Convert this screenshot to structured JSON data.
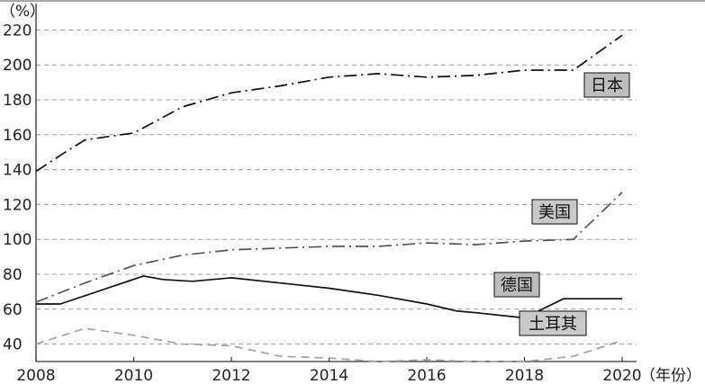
{
  "chart_data": {
    "type": "line",
    "y_unit_label": "（%）",
    "x_unit_label": "（年份）",
    "ylim": [
      30,
      230
    ],
    "xlim": [
      2008,
      2020
    ],
    "y_ticks": [
      40,
      60,
      80,
      100,
      120,
      140,
      160,
      180,
      200,
      220
    ],
    "x_ticks": [
      2008,
      2010,
      2012,
      2014,
      2016,
      2018,
      2020
    ],
    "grid": true,
    "series": [
      {
        "name": "日本",
        "color": "#111111",
        "style": "dashdot",
        "label_bg": "#bdbdbd",
        "x": [
          2008,
          2008.6,
          2009,
          2009.5,
          2010,
          2011,
          2012,
          2013,
          2014,
          2015,
          2016,
          2017,
          2018,
          2018.5,
          2019,
          2020
        ],
        "values": [
          139,
          150,
          157,
          159,
          161,
          176,
          184,
          188,
          193,
          195,
          193,
          194,
          197,
          197,
          197,
          217
        ]
      },
      {
        "name": "美国",
        "color": "#555555",
        "style": "dashdot",
        "label_bg": "#c9c9c9",
        "x": [
          2008,
          2009,
          2010,
          2011,
          2012,
          2013,
          2014,
          2015,
          2016,
          2017,
          2018,
          2019,
          2020
        ],
        "values": [
          64,
          75,
          85,
          91,
          94,
          95,
          96,
          96,
          98,
          97,
          99,
          100,
          127
        ]
      },
      {
        "name": "德国",
        "color": "#111111",
        "style": "solid",
        "label_bg": "#bdbdbd",
        "x": [
          2008,
          2008.5,
          2010.2,
          2010.6,
          2011.2,
          2012,
          2013,
          2014,
          2015,
          2016,
          2016.6,
          2017,
          2018,
          2018.8,
          2020
        ],
        "values": [
          63,
          63,
          79,
          77,
          76,
          78,
          75,
          72,
          68,
          63,
          59,
          58,
          55,
          66,
          66
        ]
      },
      {
        "name": "土耳其",
        "color": "#a3a3a3",
        "style": "dashed",
        "label_bg": "#c9c9c9",
        "x": [
          2008,
          2009,
          2010,
          2011,
          2012,
          2013,
          2014,
          2015,
          2016,
          2017,
          2018,
          2019,
          2020
        ],
        "values": [
          40,
          49,
          45,
          40,
          39,
          33,
          32,
          30,
          31,
          30,
          30,
          33,
          42
        ]
      }
    ]
  }
}
